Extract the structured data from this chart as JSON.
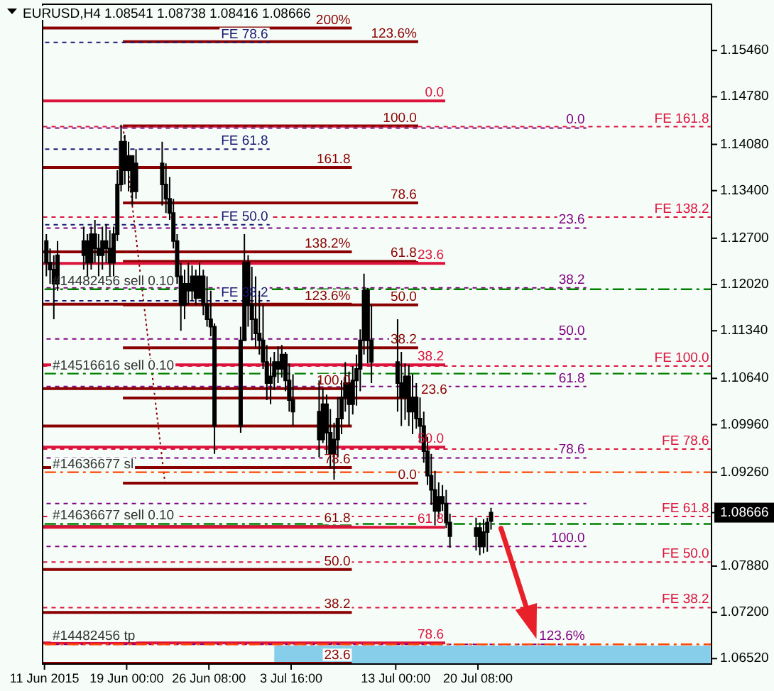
{
  "chart_data": {
    "type": "candlestick",
    "title": "EURUSD,H4 1.08541 1.08738 1.08416 1.08666",
    "x": [
      "2015-06-11T20:00",
      "2015-06-12T04:00",
      "2015-06-12T12:00",
      "2015-06-12T20:00",
      "2015-06-15T04:00",
      "2015-06-15T12:00",
      "2015-06-15T20:00",
      "2015-06-16T04:00",
      "2015-06-16T12:00",
      "2015-06-16T20:00",
      "2015-06-17T04:00",
      "2015-06-17T12:00",
      "2015-06-17T20:00",
      "2015-06-18T04:00",
      "2015-06-18T12:00",
      "2015-06-18T20:00",
      "2015-06-19T04:00",
      "2015-06-19T12:00",
      "2015-06-19T20:00",
      "2015-06-22T04:00",
      "2015-06-22T12:00",
      "2015-06-22T20:00",
      "2015-06-23T04:00",
      "2015-06-23T12:00",
      "2015-06-23T20:00",
      "2015-06-24T04:00",
      "2015-06-24T12:00",
      "2015-06-24T20:00",
      "2015-06-25T04:00",
      "2015-06-25T12:00",
      "2015-06-25T20:00",
      "2015-06-26T04:00",
      "2015-06-26T12:00",
      "2015-06-26T20:00",
      "2015-06-29T04:00",
      "2015-06-29T12:00",
      "2015-06-29T20:00",
      "2015-06-30T04:00",
      "2015-06-30T12:00",
      "2015-06-30T20:00",
      "2015-07-01T04:00",
      "2015-07-01T12:00",
      "2015-07-01T20:00",
      "2015-07-02T04:00",
      "2015-07-02T12:00",
      "2015-07-02T20:00",
      "2015-07-03T04:00",
      "2015-07-03T12:00",
      "2015-07-03T20:00",
      "2015-07-06T04:00",
      "2015-07-06T12:00",
      "2015-07-06T20:00",
      "2015-07-07T04:00",
      "2015-07-07T12:00",
      "2015-07-07T20:00",
      "2015-07-08T04:00",
      "2015-07-08T12:00",
      "2015-07-08T20:00",
      "2015-07-09T04:00",
      "2015-07-09T12:00",
      "2015-07-09T20:00",
      "2015-07-10T04:00",
      "2015-07-10T12:00",
      "2015-07-10T20:00",
      "2015-07-13T04:00",
      "2015-07-13T12:00",
      "2015-07-13T20:00",
      "2015-07-14T04:00",
      "2015-07-14T12:00",
      "2015-07-14T20:00",
      "2015-07-15T04:00",
      "2015-07-15T12:00",
      "2015-07-15T20:00",
      "2015-07-16T04:00",
      "2015-07-16T12:00",
      "2015-07-16T20:00",
      "2015-07-17T04:00",
      "2015-07-17T12:00",
      "2015-07-17T20:00",
      "2015-07-20T04:00",
      "2015-07-20T12:00",
      "2015-07-20T20:00",
      "2015-07-21T04:00",
      "2015-07-21T12:00"
    ],
    "ohlc": [
      [
        1.1266,
        1.1276,
        1.1214,
        1.1234
      ],
      [
        1.1234,
        1.1255,
        1.1203,
        1.1224
      ],
      [
        1.1224,
        1.1245,
        1.1151,
        1.1203
      ],
      [
        1.1203,
        1.1266,
        1.1193,
        1.1245
      ],
      [
        1.1245,
        1.1287,
        1.1224,
        1.1266
      ],
      [
        1.1266,
        1.1276,
        1.1214,
        1.1234
      ],
      [
        1.1234,
        1.1287,
        1.1224,
        1.1276
      ],
      [
        1.1276,
        1.1297,
        1.1234,
        1.1255
      ],
      [
        1.1255,
        1.1276,
        1.1214,
        1.1245
      ],
      [
        1.1245,
        1.1287,
        1.1224,
        1.1266
      ],
      [
        1.1266,
        1.1291,
        1.1234,
        1.1255
      ],
      [
        1.1255,
        1.1282,
        1.1214,
        1.1234
      ],
      [
        1.1234,
        1.1287,
        1.1214,
        1.1276
      ],
      [
        1.1276,
        1.137,
        1.1266,
        1.1349
      ],
      [
        1.1349,
        1.1437,
        1.1339,
        1.1412
      ],
      [
        1.1412,
        1.1422,
        1.1349,
        1.137
      ],
      [
        1.137,
        1.1412,
        1.1339,
        1.1391
      ],
      [
        1.1391,
        1.1391,
        1.1318,
        1.1339
      ],
      [
        1.1339,
        1.1401,
        1.1328,
        1.138
      ],
      [
        1.138,
        1.1412,
        1.1318,
        1.1349
      ],
      [
        1.1349,
        1.138,
        1.1307,
        1.1328
      ],
      [
        1.1328,
        1.136,
        1.1297,
        1.1307
      ],
      [
        1.1307,
        1.1328,
        1.1255,
        1.1266
      ],
      [
        1.1266,
        1.1276,
        1.1203,
        1.1214
      ],
      [
        1.1214,
        1.1234,
        1.1134,
        1.1172
      ],
      [
        1.1172,
        1.1224,
        1.1151,
        1.1203
      ],
      [
        1.1203,
        1.1234,
        1.1172,
        1.1193
      ],
      [
        1.1193,
        1.123,
        1.1178,
        1.1214
      ],
      [
        1.1214,
        1.1224,
        1.1172,
        1.1182
      ],
      [
        1.1182,
        1.1234,
        1.1182,
        1.1214
      ],
      [
        1.1214,
        1.1224,
        1.1157,
        1.1172
      ],
      [
        1.1172,
        1.1214,
        1.114,
        1.1151
      ],
      [
        1.1151,
        1.1193,
        1.1126,
        1.114
      ],
      [
        1.114,
        1.1145,
        1.0953,
        1.0994
      ],
      [
        1.0994,
        1.114,
        1.0984,
        1.112
      ],
      [
        1.112,
        1.1276,
        1.112,
        1.1234
      ],
      [
        1.1234,
        1.1245,
        1.114,
        1.1172
      ],
      [
        1.1172,
        1.1228,
        1.112,
        1.1151
      ],
      [
        1.1151,
        1.1214,
        1.1109,
        1.113
      ],
      [
        1.113,
        1.1193,
        1.1099,
        1.112
      ],
      [
        1.112,
        1.1172,
        1.1078,
        1.1088
      ],
      [
        1.1088,
        1.1113,
        1.1032,
        1.1057
      ],
      [
        1.1057,
        1.1095,
        1.1026,
        1.1067
      ],
      [
        1.1067,
        1.1103,
        1.1047,
        1.1088
      ],
      [
        1.1088,
        1.1111,
        1.1057,
        1.1078
      ],
      [
        1.1078,
        1.1113,
        1.1065,
        1.1099
      ],
      [
        1.1099,
        1.1103,
        1.1045,
        1.1061
      ],
      [
        1.1061,
        1.1086,
        1.1015,
        1.1032
      ],
      [
        1.1032,
        1.107,
        1.0994,
        1.1015
      ],
      [
        1.1015,
        1.1061,
        1.0948,
        1.0974
      ],
      [
        1.0974,
        1.1049,
        1.0969,
        1.1026
      ],
      [
        1.1026,
        1.104,
        1.0953,
        1.0984
      ],
      [
        1.0984,
        1.1019,
        1.0932,
        1.0953
      ],
      [
        1.0953,
        1.0999,
        1.0915,
        1.0974
      ],
      [
        1.0974,
        1.1036,
        1.0948,
        1.1005
      ],
      [
        1.1005,
        1.1061,
        1.0982,
        1.1036
      ],
      [
        1.1036,
        1.1088,
        1.1015,
        1.1057
      ],
      [
        1.1057,
        1.1074,
        1.0994,
        1.1026
      ],
      [
        1.1026,
        1.1082,
        1.1011,
        1.1061
      ],
      [
        1.1061,
        1.1099,
        1.1024,
        1.1078
      ],
      [
        1.1078,
        1.1136,
        1.1045,
        1.112
      ],
      [
        1.112,
        1.1218,
        1.1099,
        1.1193
      ],
      [
        1.1193,
        1.1197,
        1.1086,
        1.112
      ],
      [
        1.112,
        1.1172,
        1.1057,
        1.1088
      ],
      [
        1.1088,
        1.1151,
        1.1015,
        1.1057
      ],
      [
        1.1057,
        1.1103,
        1.0994,
        1.1036
      ],
      [
        1.1036,
        1.1086,
        1.1003,
        1.1067
      ],
      [
        1.1067,
        1.1084,
        1.0994,
        1.1015
      ],
      [
        1.1015,
        1.107,
        1.0982,
        1.1036
      ],
      [
        1.1036,
        1.1057,
        1.099,
        1.1005
      ],
      [
        1.1005,
        1.1036,
        1.0969,
        1.0994
      ],
      [
        1.0994,
        1.1015,
        1.094,
        1.0957
      ],
      [
        1.0957,
        1.0978,
        1.0907,
        1.0921
      ],
      [
        1.0921,
        1.0953,
        1.0878,
        1.09
      ],
      [
        1.09,
        1.0928,
        1.0848,
        1.0869
      ],
      [
        1.0869,
        1.0911,
        1.0857,
        1.089
      ],
      [
        1.089,
        1.0907,
        1.0869,
        1.088
      ],
      [
        1.088,
        1.09,
        1.0844,
        1.0852
      ],
      [
        1.0852,
        1.0865,
        1.0815,
        1.0832
      ],
      [
        1.0832,
        1.0859,
        1.0811,
        1.0844
      ],
      [
        1.0844,
        1.0852,
        1.0804,
        1.0817
      ],
      [
        1.0817,
        1.0857,
        1.0807,
        1.0838
      ],
      [
        1.0838,
        1.0859,
        1.0809,
        1.0852
      ],
      [
        1.08541,
        1.08738,
        1.08416,
        1.08666
      ]
    ],
    "xlim": [
      "2015-06-11T12:00",
      "2015-08-10T04:00"
    ],
    "xticks": [
      {
        "value": "2015-06-11T16:00",
        "label": "11 Jun 2015"
      },
      {
        "value": "2015-06-19T00:00",
        "label": "19 Jun 00:00"
      },
      {
        "value": "2015-06-26T08:00",
        "label": "26 Jun 08:00"
      },
      {
        "value": "2015-07-03T16:00",
        "label": "3 Jul 16:00"
      },
      {
        "value": "2015-07-13T00:00",
        "label": "13 Jul 00:00"
      },
      {
        "value": "2015-07-20T08:00",
        "label": "20 Jul 08:00"
      }
    ],
    "ylim": [
      1.0644,
      1.1614
    ],
    "yticks": [
      {
        "value": 1.1546,
        "label": "1.15460"
      },
      {
        "value": 1.1478,
        "label": "1.14780"
      },
      {
        "value": 1.1408,
        "label": "1.14080"
      },
      {
        "value": 1.134,
        "label": "1.13400"
      },
      {
        "value": 1.127,
        "label": "1.12700"
      },
      {
        "value": 1.1202,
        "label": "1.12020"
      },
      {
        "value": 1.1134,
        "label": "1.11340"
      },
      {
        "value": 1.1064,
        "label": "1.10640"
      },
      {
        "value": 1.0996,
        "label": "1.09960"
      },
      {
        "value": 1.0926,
        "label": "1.09260"
      },
      {
        "value": 1.08666,
        "label": "1.08666"
      },
      {
        "value": 1.0788,
        "label": "1.07880"
      },
      {
        "value": 1.072,
        "label": "1.07200"
      },
      {
        "value": 1.0652,
        "label": "1.06520"
      }
    ],
    "series": [
      {
        "type": "area",
        "color": "#87ceeb",
        "x": [
          "2015-07-02T04:00",
          "2015-08-10T02:00"
        ],
        "values": [
          1.0671,
          1.0671
        ]
      },
      {
        "type": "line",
        "name": "200%",
        "color": "#8b0000",
        "line_style": "solid",
        "x": [
          "2015-06-11T12:00",
          "2015-07-09T02:00"
        ],
        "values": [
          1.1579,
          1.1579
        ]
      },
      {
        "type": "line",
        "name": "161.8",
        "color": "#8b0000",
        "line_style": "solid",
        "x": [
          "2015-06-11T12:00",
          "2015-07-09T02:00"
        ],
        "values": [
          1.1374,
          1.1374
        ]
      },
      {
        "type": "line",
        "name": "138.2%",
        "color": "#8b0000",
        "line_style": "solid",
        "x": [
          "2015-06-11T12:00",
          "2015-07-09T02:00"
        ],
        "values": [
          1.125,
          1.125
        ]
      },
      {
        "type": "line",
        "name": "123.6%",
        "color": "#8b0000",
        "line_style": "solid",
        "x": [
          "2015-06-11T12:00",
          "2015-07-09T02:00"
        ],
        "values": [
          1.1173,
          1.1173
        ]
      },
      {
        "type": "line",
        "name": "100.0",
        "color": "#8b0000",
        "line_style": "solid",
        "x": [
          "2015-06-11T12:00",
          "2015-07-09T02:00"
        ],
        "values": [
          1.1049,
          1.1049
        ]
      },
      {
        "type": "line",
        "color": "#8b0000",
        "line_style": "solid",
        "x": [
          "2015-06-11T12:00",
          "2015-07-09T02:00"
        ],
        "values": [
          1.0994,
          1.0994
        ]
      },
      {
        "type": "line",
        "name": "78.6",
        "color": "#8b0000",
        "line_style": "solid",
        "x": [
          "2015-06-11T12:00",
          "2015-07-09T02:00"
        ],
        "values": [
          1.0933,
          1.0933
        ]
      },
      {
        "type": "line",
        "name": "61.8",
        "color": "#8b0000",
        "line_style": "solid",
        "x": [
          "2015-06-11T12:00",
          "2015-07-09T02:00"
        ],
        "values": [
          1.0846,
          1.0846
        ]
      },
      {
        "type": "line",
        "name": "50.0",
        "color": "#8b0000",
        "line_style": "solid",
        "x": [
          "2015-06-11T12:00",
          "2015-07-09T02:00"
        ],
        "values": [
          1.0783,
          1.0783
        ]
      },
      {
        "type": "line",
        "name": "38.2",
        "color": "#8b0000",
        "line_style": "solid",
        "x": [
          "2015-06-11T12:00",
          "2015-07-09T02:00"
        ],
        "values": [
          1.072,
          1.072
        ]
      },
      {
        "type": "line",
        "name": "23.6",
        "color": "#8b0000",
        "line_style": "solid",
        "x": [
          "2015-06-11T12:00",
          "2015-07-09T02:00"
        ],
        "values": [
          1.0645,
          1.0645
        ]
      },
      {
        "type": "line",
        "name": "123.6%",
        "color": "#8b0000",
        "line_style": "solid",
        "x": [
          "2015-06-18T16:00",
          "2015-07-15T00:00"
        ],
        "values": [
          1.1559,
          1.1559
        ]
      },
      {
        "type": "line",
        "name": "100.0",
        "color": "#8b0000",
        "line_style": "solid",
        "x": [
          "2015-06-18T16:00",
          "2015-07-15T00:00"
        ],
        "values": [
          1.1435,
          1.1435
        ]
      },
      {
        "type": "line",
        "name": "78.6",
        "color": "#8b0000",
        "line_style": "solid",
        "x": [
          "2015-06-18T16:00",
          "2015-07-15T00:00"
        ],
        "values": [
          1.1322,
          1.1322
        ]
      },
      {
        "type": "line",
        "name": "61.8",
        "color": "#8b0000",
        "line_style": "solid",
        "x": [
          "2015-06-18T16:00",
          "2015-07-15T00:00"
        ],
        "values": [
          1.1236,
          1.1236
        ]
      },
      {
        "type": "line",
        "name": "50.0",
        "color": "#8b0000",
        "line_style": "solid",
        "x": [
          "2015-06-18T16:00",
          "2015-07-15T00:00"
        ],
        "values": [
          1.1172,
          1.1172
        ]
      },
      {
        "type": "line",
        "name": "38.2",
        "color": "#8b0000",
        "line_style": "solid",
        "x": [
          "2015-06-18T16:00",
          "2015-07-15T00:00"
        ],
        "values": [
          1.1109,
          1.1109
        ]
      },
      {
        "type": "line",
        "name": "23.6",
        "color": "#8b0000",
        "line_style": "solid",
        "x": [
          "2015-06-18T16:00",
          "2015-07-15T00:00"
        ],
        "values": [
          1.1035,
          1.1035
        ]
      },
      {
        "type": "line",
        "name": "0.0",
        "color": "#8b0000",
        "line_style": "solid",
        "x": [
          "2015-06-18T16:00",
          "2015-07-15T00:00"
        ],
        "values": [
          1.091,
          1.091
        ]
      },
      {
        "type": "line",
        "color": "#8b0000",
        "line_style": "dotted",
        "x": [
          "2015-06-18T16:00",
          "2015-06-22T10:00"
        ],
        "values": [
          1.1435,
          1.091
        ]
      },
      {
        "type": "line",
        "name": "0.0",
        "color": "#dc143c",
        "line_style": "solid",
        "x": [
          "2015-06-11T12:00",
          "2015-07-17T10:00"
        ],
        "values": [
          1.1472,
          1.1472
        ]
      },
      {
        "type": "line",
        "name": "23.6",
        "color": "#dc143c",
        "line_style": "solid",
        "x": [
          "2015-06-11T12:00",
          "2015-07-17T10:00"
        ],
        "values": [
          1.1233,
          1.1233
        ]
      },
      {
        "type": "line",
        "name": "38.2",
        "color": "#dc143c",
        "line_style": "solid",
        "x": [
          "2015-06-11T12:00",
          "2015-07-17T10:00"
        ],
        "values": [
          1.1084,
          1.1084
        ]
      },
      {
        "type": "line",
        "name": "50.0",
        "color": "#dc143c",
        "line_style": "solid",
        "x": [
          "2015-06-11T12:00",
          "2015-07-17T10:00"
        ],
        "values": [
          1.0963,
          1.0963
        ]
      },
      {
        "type": "line",
        "name": "61.8",
        "color": "#dc143c",
        "line_style": "solid",
        "x": [
          "2015-06-11T12:00",
          "2015-07-17T10:00"
        ],
        "values": [
          1.0845,
          1.0845
        ]
      },
      {
        "type": "line",
        "name": "78.6",
        "color": "#dc143c",
        "line_style": "solid",
        "x": [
          "2015-06-11T12:00",
          "2015-07-17T10:00"
        ],
        "values": [
          1.0675,
          1.0675
        ]
      },
      {
        "type": "line",
        "name": "0.0",
        "color": "#800080",
        "line_style": "dashed",
        "x": [
          "2015-06-11T12:00",
          "2015-07-30T00:00"
        ],
        "values": [
          1.1432,
          1.1432
        ]
      },
      {
        "type": "line",
        "name": "23.6",
        "color": "#800080",
        "line_style": "dashed",
        "x": [
          "2015-06-11T12:00",
          "2015-07-30T00:00"
        ],
        "values": [
          1.1285,
          1.1285
        ]
      },
      {
        "type": "line",
        "name": "38.2",
        "color": "#800080",
        "line_style": "dashed",
        "x": [
          "2015-06-11T12:00",
          "2015-07-30T00:00"
        ],
        "values": [
          1.1197,
          1.1197
        ]
      },
      {
        "type": "line",
        "name": "50.0",
        "color": "#800080",
        "line_style": "dashed",
        "x": [
          "2015-06-11T12:00",
          "2015-07-30T00:00"
        ],
        "values": [
          1.1122,
          1.1122
        ]
      },
      {
        "type": "line",
        "name": "61.8",
        "color": "#800080",
        "line_style": "dashed",
        "x": [
          "2015-06-11T12:00",
          "2015-07-30T00:00"
        ],
        "values": [
          1.1052,
          1.1052
        ]
      },
      {
        "type": "line",
        "name": "78.6",
        "color": "#800080",
        "line_style": "dashed",
        "x": [
          "2015-06-11T12:00",
          "2015-07-30T00:00"
        ],
        "values": [
          1.0947,
          1.0947
        ]
      },
      {
        "type": "line",
        "color": "#800080",
        "line_style": "dashed",
        "x": [
          "2015-06-11T12:00",
          "2015-07-30T00:00"
        ],
        "values": [
          1.088,
          1.088
        ]
      },
      {
        "type": "line",
        "name": "100.0",
        "color": "#800080",
        "line_style": "dashed",
        "x": [
          "2015-06-11T12:00",
          "2015-07-30T00:00"
        ],
        "values": [
          1.0817,
          1.0817
        ]
      },
      {
        "type": "line",
        "name": "123.6%",
        "color": "#800080",
        "line_style": "dashed",
        "x": [
          "2015-06-11T12:00",
          "2015-07-30T00:00"
        ],
        "values": [
          1.0673,
          1.0673
        ]
      },
      {
        "type": "line",
        "name": "FE 161.8",
        "color": "#dc143c",
        "line_style": "dashed",
        "x": [
          "2015-06-11T12:00",
          "2015-08-10T02:00"
        ],
        "values": [
          1.1434,
          1.1434
        ]
      },
      {
        "type": "line",
        "name": "FE 138.2",
        "color": "#dc143c",
        "line_style": "dashed",
        "x": [
          "2015-06-11T12:00",
          "2015-08-10T02:00"
        ],
        "values": [
          1.1301,
          1.1301
        ]
      },
      {
        "type": "line",
        "name": "FE 100.0",
        "color": "#dc143c",
        "line_style": "dashed",
        "x": [
          "2015-06-11T12:00",
          "2015-08-10T02:00"
        ],
        "values": [
          1.1082,
          1.1082
        ]
      },
      {
        "type": "line",
        "name": "FE 78.6",
        "color": "#dc143c",
        "line_style": "dashed",
        "x": [
          "2015-06-11T12:00",
          "2015-08-10T02:00"
        ],
        "values": [
          1.096,
          1.096
        ]
      },
      {
        "type": "line",
        "name": "FE 61.8",
        "color": "#dc143c",
        "line_style": "dashed",
        "x": [
          "2015-06-11T12:00",
          "2015-08-10T02:00"
        ],
        "values": [
          1.0861,
          1.0861
        ]
      },
      {
        "type": "line",
        "name": "FE 50.0",
        "color": "#dc143c",
        "line_style": "dashed",
        "x": [
          "2015-06-11T12:00",
          "2015-08-10T02:00"
        ],
        "values": [
          1.0794,
          1.0794
        ]
      },
      {
        "type": "line",
        "name": "FE 38.2",
        "color": "#dc143c",
        "line_style": "dashed",
        "x": [
          "2015-06-11T12:00",
          "2015-08-10T02:00"
        ],
        "values": [
          1.0727,
          1.0727
        ]
      },
      {
        "type": "line",
        "name": "FE 78.6",
        "color": "#191970",
        "line_style": "dashed",
        "x": [
          "2015-06-11T12:00",
          "2015-07-01T18:00"
        ],
        "values": [
          1.1558,
          1.1558
        ]
      },
      {
        "type": "line",
        "name": "FE 61.8",
        "color": "#191970",
        "line_style": "dashed",
        "x": [
          "2015-06-11T12:00",
          "2015-07-01T18:00"
        ],
        "values": [
          1.1401,
          1.1401
        ]
      },
      {
        "type": "line",
        "name": "FE 50.0",
        "color": "#191970",
        "line_style": "dashed",
        "x": [
          "2015-06-11T12:00",
          "2015-07-01T18:00"
        ],
        "values": [
          1.129,
          1.129
        ]
      },
      {
        "type": "line",
        "name": "FE 38.2",
        "color": "#191970",
        "line_style": "dashed",
        "x": [
          "2015-06-11T12:00",
          "2015-07-01T18:00"
        ],
        "values": [
          1.1178,
          1.1178
        ]
      }
    ],
    "ref_lines": [
      {
        "axis": "y",
        "value": 1.1195,
        "label": "#14482456 sell 0.10",
        "color": "#008000",
        "line_style": "dashed"
      },
      {
        "axis": "y",
        "value": 1.1071,
        "label": "#14516616 sell 0.10",
        "color": "#008000",
        "line_style": "dashed"
      },
      {
        "axis": "y",
        "value": 1.0926,
        "label": "#14636677 sl",
        "color": "#ff4500",
        "line_style": "dashed"
      },
      {
        "axis": "y",
        "value": 1.085,
        "label": "#14636677 sell 0.10",
        "color": "#008000",
        "line_style": "dashed"
      },
      {
        "axis": "y",
        "value": 1.0673,
        "label": "#14482456 tp",
        "color": "#ff4500",
        "line_style": "dashed"
      }
    ]
  }
}
